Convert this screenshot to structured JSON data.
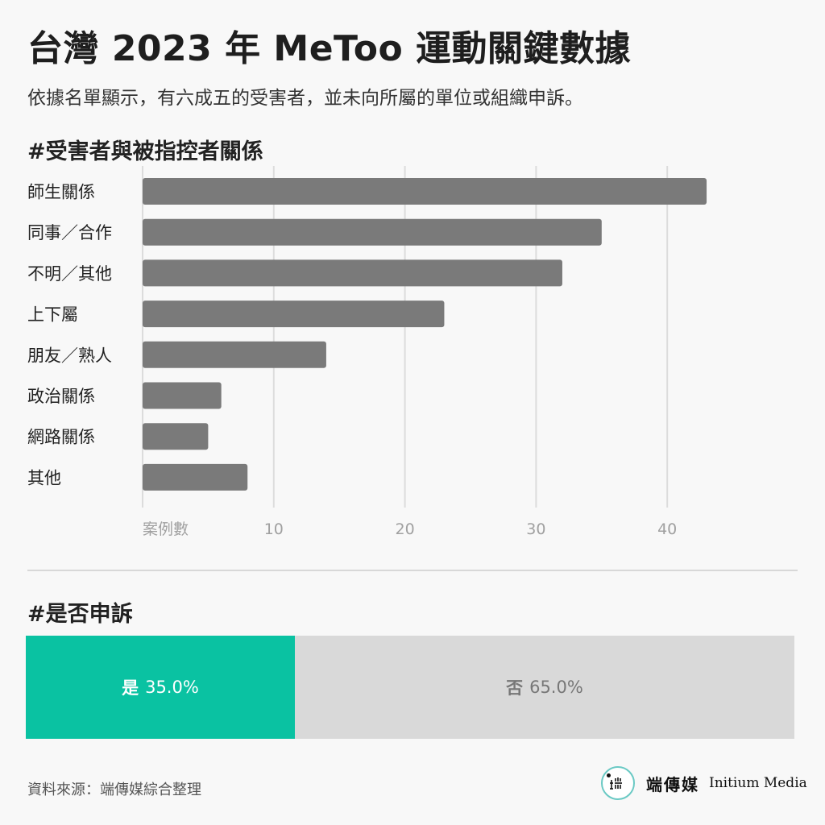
{
  "title": "台灣 2023 年 MeToo 運動關鍵數據",
  "subtitle": "依據名單顯示，有六成五的受害者，並未向所屬的單位或組織申訴。",
  "chart_data": [
    {
      "type": "bar",
      "orientation": "horizontal",
      "title": "#受害者與被指控者關係",
      "categories": [
        "師生關係",
        "同事／合作",
        "不明／其他",
        "上下屬",
        "朋友／熟人",
        "政治關係",
        "網路關係",
        "其他"
      ],
      "values": [
        43,
        35,
        32,
        23,
        14,
        6,
        5,
        8
      ],
      "xlabel": "案例數",
      "xticks": [
        10,
        20,
        30,
        40
      ],
      "xlim": [
        0,
        43
      ],
      "grid": true,
      "color": "#7a7a7a"
    },
    {
      "type": "bar",
      "stacked": true,
      "title": "#是否申訴",
      "series": [
        {
          "name": "是",
          "value": 35.0,
          "value_label": "35.0%",
          "color": "#0ac2a2"
        },
        {
          "name": "否",
          "value": 65.0,
          "value_label": "65.0%",
          "color": "#d9d9d9"
        }
      ]
    }
  ],
  "source": "資料來源：端傳媒綜合整理",
  "brand": {
    "name_zh": "端傳媒",
    "name_en": "Initium Media",
    "logo_icon": "initium-logo-icon"
  }
}
